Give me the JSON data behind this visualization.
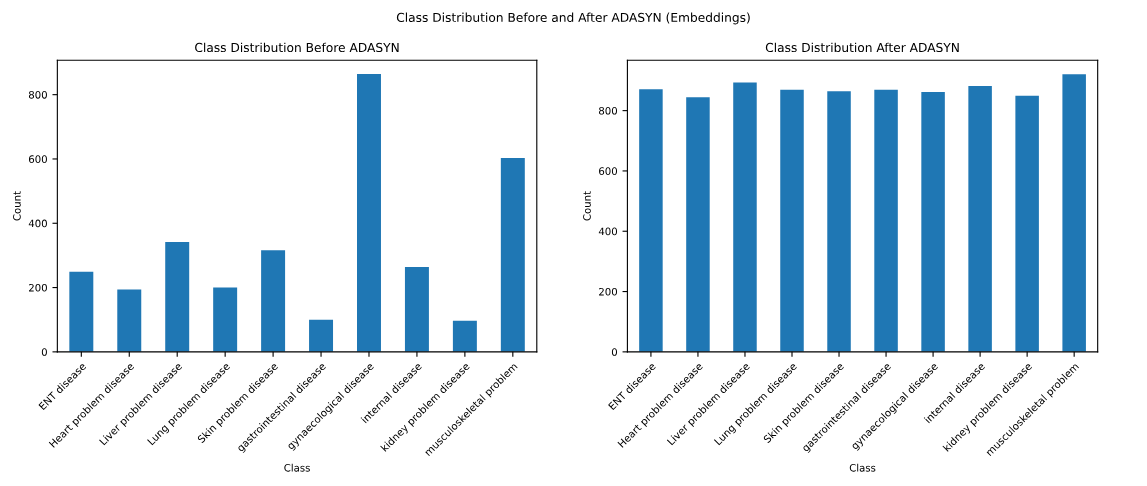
{
  "chart_data": [
    {
      "type": "bar",
      "title": "Class Distribution Before ADASYN",
      "xlabel": "Class",
      "ylabel": "Count",
      "categories": [
        "ENT disease",
        "Heart problem disease",
        "Liver problem disease",
        "Lung problem disease",
        "Skin problem disease",
        "gastrointestinal disease",
        "gynaecological disease",
        "internal disease",
        "kidney problem disease",
        "musculoskeletal problem"
      ],
      "values": [
        249,
        194,
        342,
        200,
        316,
        100,
        864,
        264,
        97,
        603
      ],
      "color": "#1f77b4",
      "ylim": [
        0,
        907
      ],
      "yticks": [
        0,
        200,
        400,
        600,
        800
      ],
      "grid": false,
      "legend": false
    },
    {
      "type": "bar",
      "title": "Class Distribution After ADASYN",
      "xlabel": "Class",
      "ylabel": "Count",
      "categories": [
        "ENT disease",
        "Heart problem disease",
        "Liver problem disease",
        "Lung problem disease",
        "Skin problem disease",
        "gastrointestinal disease",
        "gynaecological disease",
        "internal disease",
        "kidney problem disease",
        "musculoskeletal problem"
      ],
      "values": [
        871,
        844,
        893,
        869,
        864,
        869,
        862,
        882,
        849,
        921
      ],
      "color": "#1f77b4",
      "ylim": [
        0,
        967
      ],
      "yticks": [
        0,
        200,
        400,
        600,
        800
      ],
      "grid": false,
      "legend": false,
      "annotations": [
        "Class Distribution Before and After ADASYN (Embeddings)"
      ]
    }
  ]
}
